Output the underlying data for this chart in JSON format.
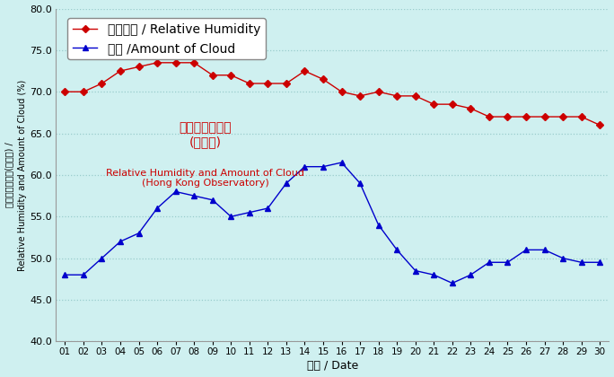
{
  "days": [
    1,
    2,
    3,
    4,
    5,
    6,
    7,
    8,
    9,
    10,
    11,
    12,
    13,
    14,
    15,
    16,
    17,
    18,
    19,
    20,
    21,
    22,
    23,
    24,
    25,
    26,
    27,
    28,
    29,
    30
  ],
  "day_labels": [
    "01",
    "02",
    "03",
    "04",
    "05",
    "06",
    "07",
    "08",
    "09",
    "10",
    "11",
    "12",
    "13",
    "14",
    "15",
    "16",
    "17",
    "18",
    "19",
    "20",
    "21",
    "22",
    "23",
    "24",
    "25",
    "26",
    "27",
    "28",
    "29",
    "30"
  ],
  "rh": [
    70.0,
    70.0,
    71.0,
    72.5,
    73.0,
    73.5,
    73.5,
    73.5,
    72.0,
    72.0,
    71.0,
    71.0,
    71.0,
    72.5,
    71.5,
    70.0,
    69.5,
    70.0,
    69.5,
    69.5,
    68.5,
    68.5,
    68.0,
    67.0,
    67.0,
    67.0,
    67.0,
    67.0,
    67.0,
    66.0
  ],
  "cloud": [
    48.0,
    48.0,
    50.0,
    52.0,
    53.0,
    56.0,
    58.0,
    57.5,
    57.0,
    55.0,
    55.5,
    56.0,
    59.0,
    61.0,
    61.0,
    61.5,
    59.0,
    54.0,
    51.0,
    48.5,
    48.0,
    47.0,
    48.0,
    49.5,
    49.5,
    51.0,
    51.0,
    50.0,
    49.5,
    49.5
  ],
  "rh_color": "#cc0000",
  "cloud_color": "#0000cc",
  "bg_color": "#cff0f0",
  "plot_area_bg": "#cff0f0",
  "ylim": [
    40.0,
    80.0
  ],
  "yticks": [
    40.0,
    45.0,
    50.0,
    55.0,
    60.0,
    65.0,
    70.0,
    75.0,
    80.0
  ],
  "ylabel_cn": "相對濕度及雲量(百分比) /",
  "ylabel_en": "Relative Humidity and Amount of Cloud (%)",
  "xlabel_cn": "日期 / Date",
  "legend_rh": "相對濕度 / Relative Humidity",
  "legend_cloud": "雲量 /Amount of Cloud",
  "ann1": "相對濕度及雲量",
  "ann2": "(天文台)",
  "ann3": "Relative Humidity and Amount of Cloud",
  "ann4": "(Hong Kong Observatory)",
  "ann_color": "#cc0000",
  "grid_color": "#99cccc",
  "marker_size": 4
}
